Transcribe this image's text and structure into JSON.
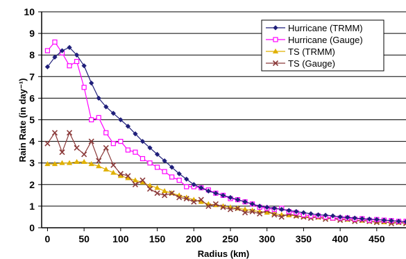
{
  "chart_data": {
    "type": "line",
    "title": "",
    "xlabel": "Radius (km)",
    "ylabel": "Rain Rate (in day⁻¹)",
    "xlim": [
      -8,
      490
    ],
    "ylim": [
      0,
      10
    ],
    "x_ticks": [
      0,
      50,
      100,
      150,
      200,
      250,
      300,
      350,
      400,
      450
    ],
    "y_ticks": [
      0,
      1,
      2,
      3,
      4,
      5,
      6,
      7,
      8,
      9,
      10
    ],
    "grid": "horizontal",
    "legend_position": "top-right",
    "series": [
      {
        "name": "Hurricane (TRMM)",
        "color": "#1f1f7a",
        "marker": "diamond",
        "x": [
          0,
          10,
          20,
          30,
          40,
          50,
          60,
          70,
          80,
          90,
          100,
          110,
          120,
          130,
          140,
          150,
          160,
          170,
          180,
          190,
          200,
          210,
          220,
          230,
          240,
          250,
          260,
          270,
          280,
          290,
          300,
          310,
          320,
          330,
          340,
          350,
          360,
          370,
          380,
          390,
          400,
          410,
          420,
          430,
          440,
          450,
          460,
          470,
          480,
          490
        ],
        "y": [
          7.45,
          7.9,
          8.2,
          8.35,
          8.0,
          7.5,
          6.7,
          6.0,
          5.6,
          5.3,
          5.0,
          4.7,
          4.35,
          4.0,
          3.7,
          3.4,
          3.1,
          2.8,
          2.5,
          2.25,
          2.0,
          1.85,
          1.7,
          1.6,
          1.5,
          1.4,
          1.3,
          1.2,
          1.1,
          1.0,
          0.95,
          0.9,
          0.85,
          0.8,
          0.75,
          0.7,
          0.65,
          0.6,
          0.58,
          0.55,
          0.5,
          0.48,
          0.45,
          0.42,
          0.4,
          0.38,
          0.35,
          0.33,
          0.3,
          0.28
        ]
      },
      {
        "name": "Hurricane (Gauge)",
        "color": "#ff00ff",
        "marker": "square",
        "x": [
          0,
          10,
          20,
          30,
          40,
          50,
          60,
          70,
          80,
          90,
          100,
          110,
          120,
          130,
          140,
          150,
          160,
          170,
          180,
          190,
          200,
          210,
          220,
          230,
          240,
          250,
          260,
          270,
          280,
          290,
          300,
          310,
          320,
          330,
          340,
          350,
          360,
          370,
          380,
          390,
          400,
          410,
          420,
          430,
          440,
          450,
          460,
          470,
          480,
          490
        ],
        "y": [
          8.2,
          8.6,
          8.1,
          7.5,
          7.7,
          6.5,
          5.0,
          5.1,
          4.4,
          3.9,
          4.0,
          3.6,
          3.5,
          3.2,
          3.0,
          2.8,
          2.6,
          2.35,
          2.2,
          1.9,
          1.9,
          1.85,
          1.75,
          1.6,
          1.5,
          1.35,
          1.3,
          1.2,
          1.1,
          0.95,
          0.9,
          0.85,
          0.9,
          0.75,
          0.7,
          0.6,
          0.55,
          0.55,
          0.5,
          0.45,
          0.45,
          0.45,
          0.4,
          0.42,
          0.35,
          0.38,
          0.35,
          0.33,
          0.3,
          0.3
        ]
      },
      {
        "name": "TS (TRMM)",
        "color": "#e0b000",
        "marker": "triangle",
        "x": [
          0,
          10,
          20,
          30,
          40,
          50,
          60,
          70,
          80,
          90,
          100,
          110,
          120,
          130,
          140,
          150,
          160,
          170,
          180,
          190,
          200,
          210,
          220,
          230,
          240,
          250,
          260,
          270,
          280,
          290,
          300,
          310,
          320,
          330,
          340,
          350,
          360,
          370,
          380,
          390,
          400,
          410,
          420,
          430,
          440,
          450,
          460,
          470,
          480,
          490
        ],
        "y": [
          2.95,
          2.95,
          3.0,
          3.0,
          3.05,
          3.05,
          2.95,
          2.85,
          2.7,
          2.55,
          2.4,
          2.3,
          2.2,
          2.1,
          1.95,
          1.85,
          1.7,
          1.6,
          1.5,
          1.4,
          1.3,
          1.2,
          1.1,
          1.05,
          1.0,
          0.95,
          0.9,
          0.85,
          0.8,
          0.75,
          0.7,
          0.65,
          0.6,
          0.58,
          0.55,
          0.52,
          0.5,
          0.48,
          0.45,
          0.42,
          0.4,
          0.38,
          0.35,
          0.33,
          0.3,
          0.28,
          0.26,
          0.25,
          0.24,
          0.22
        ]
      },
      {
        "name": "TS (Gauge)",
        "color": "#8b3a3a",
        "marker": "x",
        "x": [
          0,
          10,
          20,
          30,
          40,
          50,
          60,
          70,
          80,
          90,
          100,
          110,
          120,
          130,
          140,
          150,
          160,
          170,
          180,
          190,
          200,
          210,
          220,
          230,
          240,
          250,
          260,
          270,
          280,
          290,
          300,
          310,
          320,
          330,
          340,
          350,
          360,
          370,
          380,
          390,
          400,
          410,
          420,
          430,
          440,
          450,
          460,
          470,
          480,
          490
        ],
        "y": [
          3.9,
          4.4,
          3.5,
          4.4,
          3.7,
          3.4,
          4.0,
          3.1,
          3.7,
          2.9,
          2.5,
          2.4,
          2.0,
          2.2,
          1.8,
          1.6,
          1.5,
          1.6,
          1.4,
          1.35,
          1.2,
          1.3,
          1.0,
          1.1,
          0.95,
          0.85,
          0.9,
          0.7,
          0.75,
          0.65,
          0.8,
          0.6,
          0.5,
          0.65,
          0.55,
          0.5,
          0.45,
          0.5,
          0.4,
          0.45,
          0.35,
          0.4,
          0.3,
          0.35,
          0.3,
          0.25,
          0.3,
          0.2,
          0.25,
          0.2
        ]
      }
    ]
  }
}
